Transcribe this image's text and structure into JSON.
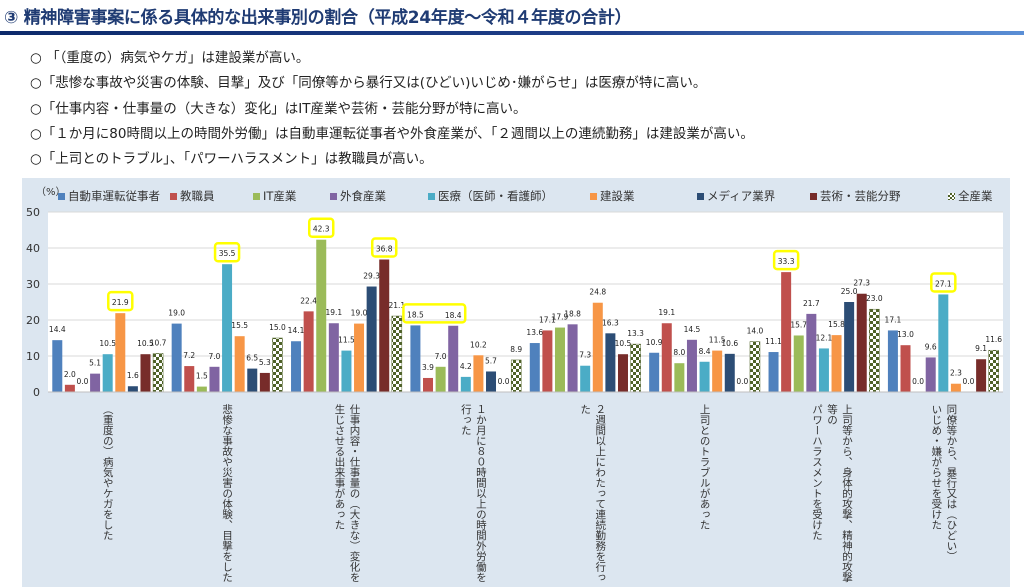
{
  "title": "③ 精神障害事案に係る具体的な出来事別の割合（平成24年度～令和４年度の合計）",
  "bullets": [
    "○ 「（重度の）病気やケガ」は建設業が高い。",
    "○「悲惨な事故や災害の体験、目撃」及び「同僚等から暴行又は(ひどい)いじめ･嫌がらせ」は医療が特に高い。",
    "○「仕事内容・仕事量の（大きな）変化」はIT産業や芸術・芸能分野が特に高い。",
    "○「１か月に80時間以上の時間外労働」は自動車運転従事者や外食産業が、「２週間以上の連続勤務」は建設業が高い。",
    "○「上司とのトラブル」、「パワーハラスメント」は教職員が高い。"
  ],
  "chart_data": {
    "type": "bar",
    "ylabel": "（%）",
    "ylim": [
      0,
      50
    ],
    "yticks": [
      "0",
      "10",
      "20",
      "30",
      "40",
      "50"
    ],
    "grid": true,
    "legend_position": "top",
    "categories": [
      "（重度の）病気やケガをした",
      "悲惨な事故や災害の体験、目撃をした",
      "仕事内容・仕事量の（大きな）変化を\n生じさせる出来事があった",
      "１か月に８０時間以上の時間外労働を行った",
      "２週間以上にわたって連続勤務を行った",
      "上司とのトラブルがあった",
      "上司等から、身体的攻撃、精神的攻撃等の\nパワーハラスメントを受けた",
      "同僚等から、暴行又は（ひどい）\nいじめ・嫌がらせを受けた"
    ],
    "series": [
      {
        "name": "自動車運転従事者",
        "color": "#4f81bd",
        "values": [
          14.4,
          19.0,
          14.1,
          18.5,
          13.6,
          10.9,
          11.1,
          17.1
        ]
      },
      {
        "name": "教職員",
        "color": "#c0504d",
        "values": [
          2.0,
          7.2,
          22.4,
          3.9,
          17.1,
          19.1,
          33.3,
          13.0
        ]
      },
      {
        "name": "IT産業",
        "color": "#9bbb59",
        "values": [
          0.0,
          1.5,
          42.3,
          7.0,
          17.9,
          8.0,
          15.7,
          0.0
        ]
      },
      {
        "name": "外食産業",
        "color": "#8064a2",
        "values": [
          5.1,
          7.0,
          19.1,
          18.4,
          18.8,
          14.5,
          21.7,
          9.6
        ]
      },
      {
        "name": "医療（医師・看護師）",
        "color": "#4bacc6",
        "values": [
          10.5,
          35.5,
          11.5,
          4.2,
          7.3,
          8.4,
          12.1,
          27.1
        ]
      },
      {
        "name": "建設業",
        "color": "#f79646",
        "values": [
          21.9,
          15.5,
          19.0,
          10.2,
          24.8,
          11.5,
          15.8,
          2.3
        ]
      },
      {
        "name": "メディア業界",
        "color": "#2c4d75",
        "values": [
          1.6,
          6.5,
          29.3,
          5.7,
          16.3,
          10.6,
          25.0,
          0.0
        ]
      },
      {
        "name": "芸術・芸能分野",
        "color": "#772c2a",
        "values": [
          10.5,
          5.3,
          36.8,
          0.0,
          10.5,
          0.0,
          27.3,
          9.1
        ]
      },
      {
        "name": "全産業",
        "color": "#4f6228",
        "pattern": "checker",
        "values": [
          10.7,
          15.0,
          21.1,
          8.9,
          13.3,
          14.0,
          23.0,
          11.6
        ]
      }
    ],
    "highlights": [
      {
        "group": 0,
        "from": 5,
        "to": 5
      },
      {
        "group": 1,
        "from": 4,
        "to": 4
      },
      {
        "group": 2,
        "from": 2,
        "to": 2
      },
      {
        "group": 2,
        "from": 7,
        "to": 7
      },
      {
        "group": 3,
        "from": 0,
        "to": 3
      },
      {
        "group": 6,
        "from": 1,
        "to": 1
      },
      {
        "group": 7,
        "from": 4,
        "to": 4
      }
    ],
    "highlight_color": "#ffff00"
  }
}
